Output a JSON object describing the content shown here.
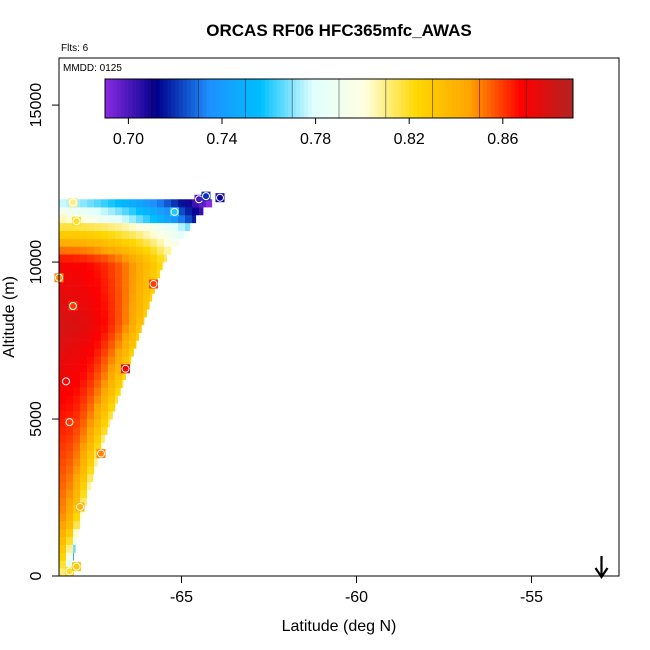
{
  "chart_data": {
    "type": "heatmap",
    "title": "ORCAS RF06 HFC365mfc_AWAS",
    "flts_note": "Flts: 6",
    "mmdd_note": "MMDD: 0125",
    "xlabel": "Latitude (deg N)",
    "ylabel": "Altitude (m)",
    "xlim": [
      -68.5,
      -52.5
    ],
    "ylim": [
      0,
      16500
    ],
    "x_ticks": [
      -65,
      -60,
      -55
    ],
    "x_tick_labels": [
      "-65",
      "-60",
      "-55"
    ],
    "y_ticks": [
      0,
      5000,
      10000,
      15000
    ],
    "y_tick_labels": [
      "0",
      "5000",
      "10000",
      "15000"
    ],
    "colorbar": {
      "min": 0.69,
      "max": 0.89,
      "ticks": [
        0.7,
        0.74,
        0.78,
        0.82,
        0.86
      ],
      "tick_labels": [
        "0.70",
        "0.74",
        "0.78",
        "0.82",
        "0.86"
      ],
      "colors": [
        "#8a2be2",
        "#00008b",
        "#1e90ff",
        "#00bfff",
        "#e0ffff",
        "#ffffe0",
        "#ffd700",
        "#ffa500",
        "#ff0000",
        "#b22222"
      ]
    },
    "arrow_latitude": -53,
    "lat_edge": -68.5,
    "triangle": [
      {
        "alt": 0,
        "lat_max": -68.2,
        "value_inner": 0.83
      },
      {
        "alt": 2000,
        "lat_max": -67.8,
        "value_inner": 0.85
      },
      {
        "alt": 4000,
        "lat_max": -67.3,
        "value_inner": 0.86
      },
      {
        "alt": 6000,
        "lat_max": -66.7,
        "value_inner": 0.87
      },
      {
        "alt": 8000,
        "lat_max": -66.1,
        "value_inner": 0.88
      },
      {
        "alt": 10000,
        "lat_max": -65.5,
        "value_inner": 0.87
      },
      {
        "alt": 11500,
        "lat_max": -64.5,
        "value_inner": 0.8
      },
      {
        "alt": 12000,
        "lat_max": -64.0,
        "value_inner": 0.77
      }
    ],
    "points": [
      {
        "lat": -68.2,
        "alt": 150,
        "value": 0.82
      },
      {
        "lat": -68.0,
        "alt": 300,
        "value": 0.83
      },
      {
        "lat": -67.9,
        "alt": 2200,
        "value": 0.84
      },
      {
        "lat": -67.3,
        "alt": 3900,
        "value": 0.85
      },
      {
        "lat": -68.2,
        "alt": 4900,
        "value": 0.86
      },
      {
        "lat": -68.3,
        "alt": 6200,
        "value": 0.87
      },
      {
        "lat": -66.6,
        "alt": 6600,
        "value": 0.87
      },
      {
        "lat": -68.1,
        "alt": 8600,
        "value": 0.86
      },
      {
        "lat": -65.8,
        "alt": 9300,
        "value": 0.86
      },
      {
        "lat": -68.5,
        "alt": 9500,
        "value": 0.85
      },
      {
        "lat": -68.0,
        "alt": 11300,
        "value": 0.82
      },
      {
        "lat": -68.1,
        "alt": 11900,
        "value": 0.81
      },
      {
        "lat": -65.2,
        "alt": 11600,
        "value": 0.76
      },
      {
        "lat": -64.5,
        "alt": 12000,
        "value": 0.7
      },
      {
        "lat": -64.3,
        "alt": 12100,
        "value": 0.72
      },
      {
        "lat": -63.9,
        "alt": 12050,
        "value": 0.71
      }
    ]
  }
}
